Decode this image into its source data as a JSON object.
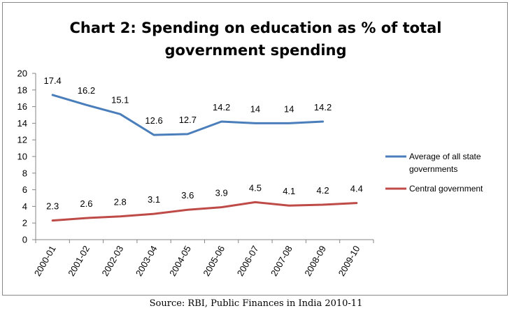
{
  "chart_data": {
    "type": "line",
    "title": [
      "Chart 2: Spending on education as % of total",
      "government spending"
    ],
    "categories": [
      "2000-01",
      "2001-02",
      "2002-03",
      "2003-04",
      "2004-05",
      "2005-06",
      "2006-07",
      "2007-08",
      "2008-09",
      "2009-10"
    ],
    "ylim": [
      0,
      20
    ],
    "yticks": [
      0,
      2,
      4,
      6,
      8,
      10,
      12,
      14,
      16,
      18,
      20
    ],
    "grid": false,
    "legend_position": "right",
    "series": [
      {
        "name": "Average of all state governments",
        "legend_lines": [
          "Average of all state",
          "governments"
        ],
        "color": "#4A7EBB",
        "values": [
          17.4,
          16.2,
          15.1,
          12.6,
          12.7,
          14.2,
          14,
          14,
          14.2,
          null
        ],
        "labels": [
          "17.4",
          "16.2",
          "15.1",
          "12.6",
          "12.7",
          "14.2",
          "14",
          "14",
          "14.2",
          ""
        ]
      },
      {
        "name": "Central government",
        "legend_lines": [
          "Central government"
        ],
        "color": "#BE4B48",
        "values": [
          2.3,
          2.6,
          2.8,
          3.1,
          3.6,
          3.9,
          4.5,
          4.1,
          4.2,
          4.4
        ],
        "labels": [
          "2.3",
          "2.6",
          "2.8",
          "3.1",
          "3.6",
          "3.9",
          "4.5",
          "4.1",
          "4.2",
          "4.4"
        ]
      }
    ]
  },
  "source": "Source: RBI, Public Finances in India 2010-11"
}
